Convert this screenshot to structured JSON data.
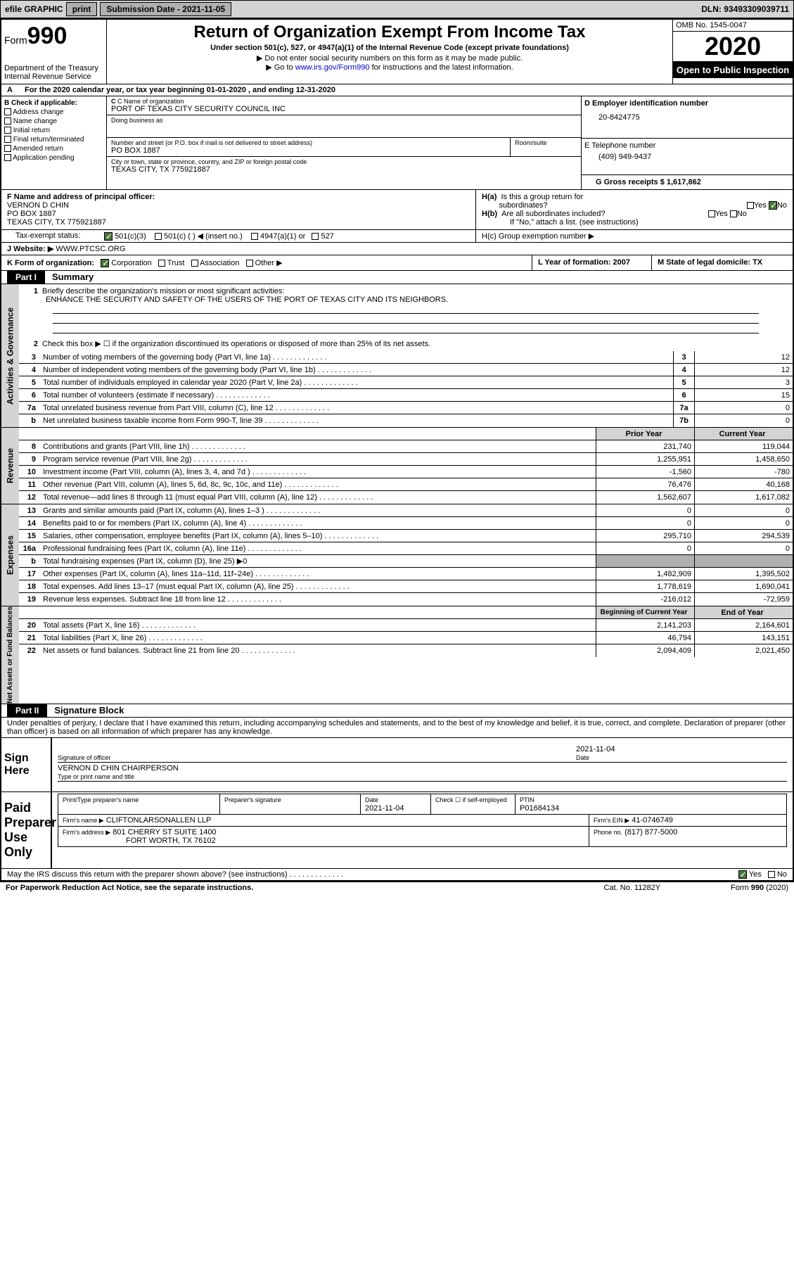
{
  "topbar": {
    "efile": "efile GRAPHIC",
    "print": "print",
    "sub_label": "Submission Date - 2021-11-05",
    "dln_label": "DLN: 93493309039711"
  },
  "header": {
    "form_word": "Form",
    "form_num": "990",
    "dept": "Department of the Treasury\nInternal Revenue Service",
    "title": "Return of Organization Exempt From Income Tax",
    "subtitle": "Under section 501(c), 527, or 4947(a)(1) of the Internal Revenue Code (except private foundations)",
    "ssn_note": "▶ Do not enter social security numbers on this form as it may be made public.",
    "goto": "▶ Go to ",
    "goto_link": "www.irs.gov/Form990",
    "goto_after": " for instructions and the latest information.",
    "omb": "OMB No. 1545-0047",
    "year": "2020",
    "inspection": "Open to Public Inspection"
  },
  "line_a": "For the 2020 calendar year, or tax year beginning 01-01-2020     , and ending 12-31-2020",
  "box_b": {
    "label": "B Check if applicable:",
    "opts": [
      "Address change",
      "Name change",
      "Initial return",
      "Final return/terminated",
      "Amended return",
      "Application pending"
    ]
  },
  "box_c": {
    "name_label": "C Name of organization",
    "name": "PORT OF TEXAS CITY SECURITY COUNCIL INC",
    "dba_label": "Doing business as",
    "street_label": "Number and street (or P.O. box if mail is not delivered to street address)",
    "room_label": "Room/suite",
    "street": "PO BOX 1887",
    "city_label": "City or town, state or province, country, and ZIP or foreign postal code",
    "city": "TEXAS CITY, TX  775921887"
  },
  "box_d": {
    "label": "D Employer identification number",
    "val": "20-8424775"
  },
  "box_e": {
    "label": "E Telephone number",
    "val": "(409) 949-9437"
  },
  "box_g": {
    "label": "G Gross receipts $ 1,617,862"
  },
  "box_f": {
    "label": "F  Name and address of principal officer:",
    "name": "VERNON D CHIN",
    "addr1": "PO BOX 1887",
    "addr2": "TEXAS CITY, TX  775921887"
  },
  "box_h": {
    "ha": "H(a)  Is this a group return for subordinates?",
    "hb": "H(b)  Are all subordinates included?",
    "hb_note": "If \"No,\" attach a list. (see instructions)",
    "hc": "H(c)  Group exemption number ▶",
    "yes": "Yes",
    "no": "No"
  },
  "box_i": {
    "label": "Tax-exempt status:",
    "o1": "501(c)(3)",
    "o2": "501(c) (   ) ◀ (insert no.)",
    "o3": "4947(a)(1) or",
    "o4": "527"
  },
  "box_j": {
    "label": "J   Website: ▶",
    "val": " WWW.PTCSC.ORG"
  },
  "box_k": {
    "label": "K Form of organization:",
    "corp": "Corporation",
    "trust": "Trust",
    "assoc": "Association",
    "other": "Other ▶"
  },
  "box_l": {
    "label": "L Year of formation: 2007"
  },
  "box_m": {
    "label": "M State of legal domicile: TX"
  },
  "part1": {
    "label": "Part I",
    "title": "Summary"
  },
  "summary": {
    "q1_label": "Briefly describe the organization's mission or most significant activities:",
    "q1_val": "ENHANCE THE SECURITY AND SAFETY OF THE USERS OF THE PORT OF TEXAS CITY AND ITS NEIGHBORS.",
    "q2": "Check this box ▶ ☐  if the organization discontinued its operations or disposed of more than 25% of its net assets.",
    "rows_gov": [
      {
        "n": "3",
        "t": "Number of voting members of the governing body (Part VI, line 1a)",
        "b": "3",
        "v": "12"
      },
      {
        "n": "4",
        "t": "Number of independent voting members of the governing body (Part VI, line 1b)",
        "b": "4",
        "v": "12"
      },
      {
        "n": "5",
        "t": "Total number of individuals employed in calendar year 2020 (Part V, line 2a)",
        "b": "5",
        "v": "3"
      },
      {
        "n": "6",
        "t": "Total number of volunteers (estimate if necessary)",
        "b": "6",
        "v": "15"
      },
      {
        "n": "7a",
        "t": "Total unrelated business revenue from Part VIII, column (C), line 12",
        "b": "7a",
        "v": "0"
      },
      {
        "n": "b",
        "t": "Net unrelated business taxable income from Form 990-T, line 39",
        "b": "7b",
        "v": "0"
      }
    ],
    "prior": "Prior Year",
    "current": "Current Year",
    "rev": [
      {
        "n": "8",
        "t": "Contributions and grants (Part VIII, line 1h)",
        "p": "231,740",
        "c": "119,044"
      },
      {
        "n": "9",
        "t": "Program service revenue (Part VIII, line 2g)",
        "p": "1,255,951",
        "c": "1,458,650"
      },
      {
        "n": "10",
        "t": "Investment income (Part VIII, column (A), lines 3, 4, and 7d )",
        "p": "-1,560",
        "c": "-780"
      },
      {
        "n": "11",
        "t": "Other revenue (Part VIII, column (A), lines 5, 6d, 8c, 9c, 10c, and 11e)",
        "p": "76,476",
        "c": "40,168"
      },
      {
        "n": "12",
        "t": "Total revenue—add lines 8 through 11 (must equal Part VIII, column (A), line 12)",
        "p": "1,562,607",
        "c": "1,617,082"
      }
    ],
    "exp": [
      {
        "n": "13",
        "t": "Grants and similar amounts paid (Part IX, column (A), lines 1–3 )",
        "p": "0",
        "c": "0"
      },
      {
        "n": "14",
        "t": "Benefits paid to or for members (Part IX, column (A), line 4)",
        "p": "0",
        "c": "0"
      },
      {
        "n": "15",
        "t": "Salaries, other compensation, employee benefits (Part IX, column (A), lines 5–10)",
        "p": "295,710",
        "c": "294,539"
      },
      {
        "n": "16a",
        "t": "Professional fundraising fees (Part IX, column (A), line 11e)",
        "p": "0",
        "c": "0"
      },
      {
        "n": "b",
        "t": "Total fundraising expenses (Part IX, column (D), line 25) ▶0",
        "p": "",
        "c": "",
        "gray": true
      },
      {
        "n": "17",
        "t": "Other expenses (Part IX, column (A), lines 11a–11d, 11f–24e)",
        "p": "1,482,909",
        "c": "1,395,502"
      },
      {
        "n": "18",
        "t": "Total expenses. Add lines 13–17 (must equal Part IX, column (A), line 25)",
        "p": "1,778,619",
        "c": "1,690,041"
      },
      {
        "n": "19",
        "t": "Revenue less expenses. Subtract line 18 from line 12",
        "p": "-216,012",
        "c": "-72,959"
      }
    ],
    "begin": "Beginning of Current Year",
    "end": "End of Year",
    "net": [
      {
        "n": "20",
        "t": "Total assets (Part X, line 16)",
        "p": "2,141,203",
        "c": "2,164,601"
      },
      {
        "n": "21",
        "t": "Total liabilities (Part X, line 26)",
        "p": "46,794",
        "c": "143,151"
      },
      {
        "n": "22",
        "t": "Net assets or fund balances. Subtract line 21 from line 20",
        "p": "2,094,409",
        "c": "2,021,450"
      }
    ]
  },
  "part2": {
    "label": "Part II",
    "title": "Signature Block"
  },
  "sig": {
    "penalty": "Under penalties of perjury, I declare that I have examined this return, including accompanying schedules and statements, and to the best of my knowledge and belief, it is true, correct, and complete. Declaration of preparer (other than officer) is based on all information of which preparer has any knowledge.",
    "sign_here": "Sign Here",
    "officer_label": "Signature of officer",
    "date_label": "Date",
    "date_val": "2021-11-04",
    "name": "VERNON D CHIN  CHAIRPERSON",
    "name_label": "Type or print name and title"
  },
  "prep": {
    "label": "Paid Preparer Use Only",
    "h1": "Print/Type preparer's name",
    "h2": "Preparer's signature",
    "h3": "Date",
    "h3v": "2021-11-04",
    "h4": "Check ☐ if self-employed",
    "h5": "PTIN",
    "h5v": "P01684134",
    "firm_label": "Firm's name     ▶",
    "firm": "CLIFTONLARSONALLEN LLP",
    "ein_label": "Firm's EIN ▶",
    "ein": "41-0746749",
    "addr_label": "Firm's address ▶",
    "addr1": "801 CHERRY ST SUITE 1400",
    "addr2": "FORT WORTH, TX  76102",
    "phone_label": "Phone no.",
    "phone": "(817) 877-5000",
    "discuss": "May the IRS discuss this return with the preparer shown above? (see instructions)",
    "yes": "Yes",
    "no": "No"
  },
  "footer": {
    "pra": "For Paperwork Reduction Act Notice, see the separate instructions.",
    "cat": "Cat. No. 11282Y",
    "form": "Form 990 (2020)"
  },
  "labels": {
    "gov": "Activities & Governance",
    "rev": "Revenue",
    "exp": "Expenses",
    "net": "Net Assets or Fund Balances"
  }
}
